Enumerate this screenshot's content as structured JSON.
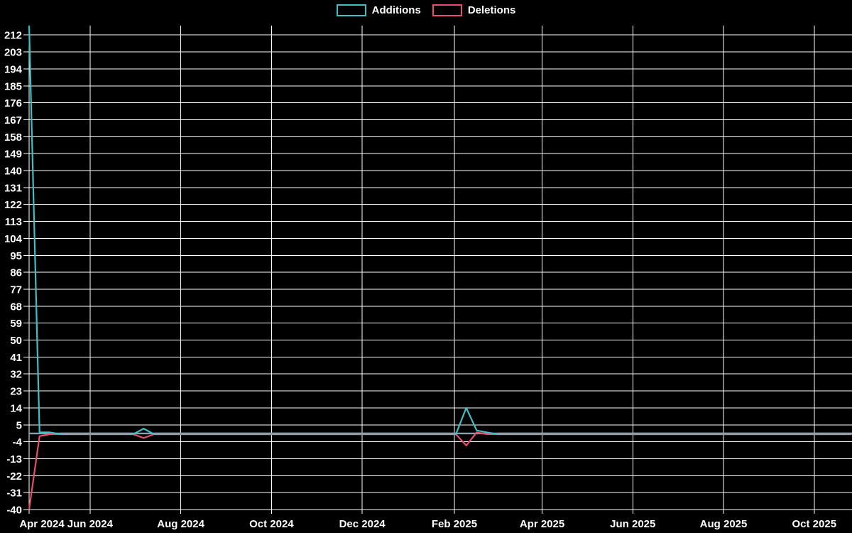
{
  "chart_data": {
    "type": "line",
    "title": "",
    "xlabel": "",
    "ylabel": "",
    "grid": true,
    "legend_position": "top-center",
    "background_color": "#000000",
    "grid_color": "#ffffff",
    "text_color": "#ffffff",
    "baseline_color": "#8aa1af",
    "y_tick_values": [
      212,
      203,
      194,
      185,
      176,
      167,
      158,
      149,
      140,
      131,
      122,
      113,
      104,
      95,
      86,
      77,
      68,
      59,
      50,
      41,
      32,
      23,
      14,
      5,
      -4,
      -13,
      -22,
      -31,
      -40
    ],
    "y_range": [
      -40,
      217
    ],
    "x_tick_labels": [
      "Apr 2024",
      "Jun 2024",
      "Aug 2024",
      "Oct 2024",
      "Dec 2024",
      "Feb 2025",
      "Apr 2025",
      "Jun 2025",
      "Aug 2025",
      "Oct 2025"
    ],
    "month_gridline_dates": [
      "2024-06-01",
      "2024-08-01",
      "2024-10-01",
      "2024-12-01",
      "2025-02-01",
      "2025-04-01",
      "2025-06-01",
      "2025-08-01",
      "2025-10-01"
    ],
    "x_start_week": "2024-04-21",
    "x_weeks": 80,
    "all_other_weeks_value": 0,
    "series": [
      {
        "name": "Additions",
        "color": "#3ec0c4",
        "weekly_nonzero": {
          "2024-04-21": 217,
          "2024-04-28": 1,
          "2024-05-05": 1,
          "2024-07-07": 3,
          "2025-02-09": 14,
          "2025-02-16": 2,
          "2025-02-23": 1
        }
      },
      {
        "name": "Deletions",
        "color": "#e84d6d",
        "weekly_nonzero": {
          "2024-04-21": -40,
          "2024-04-28": -1,
          "2024-07-07": -2,
          "2025-02-09": -6,
          "2025-02-16": 1
        }
      }
    ]
  }
}
